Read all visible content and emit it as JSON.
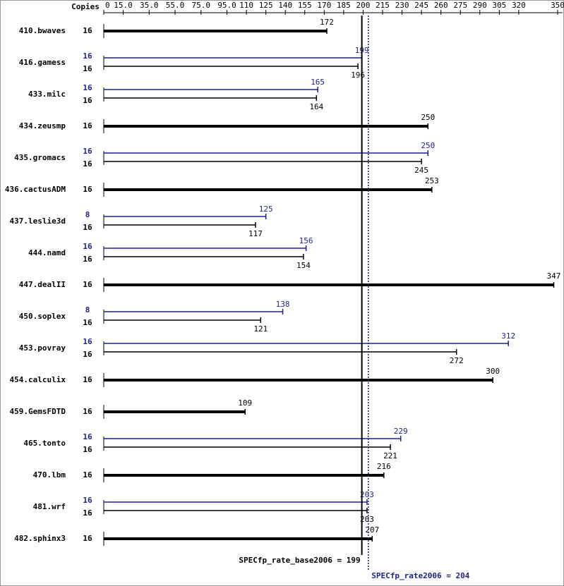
{
  "chart_data": {
    "type": "spec-rate",
    "copies_header": "Copies",
    "categories": [
      "410.bwaves",
      "416.gamess",
      "433.milc",
      "434.zeusmp",
      "435.gromacs",
      "436.cactusADM",
      "437.leslie3d",
      "444.namd",
      "447.dealII",
      "450.soplex",
      "453.povray",
      "454.calculix",
      "459.GemsFDTD",
      "465.tonto",
      "470.lbm",
      "481.wrf",
      "482.sphinx3"
    ],
    "base": {
      "color": "#000000",
      "copies": [
        16,
        16,
        16,
        16,
        16,
        16,
        16,
        16,
        16,
        16,
        16,
        16,
        16,
        16,
        16,
        16,
        16
      ],
      "values": [
        172,
        196,
        164,
        250,
        245,
        253,
        117,
        154,
        347,
        121,
        272,
        300,
        109,
        221,
        216,
        203,
        207
      ]
    },
    "peak": {
      "color": "#1f1f8f",
      "copies": [
        null,
        16,
        16,
        null,
        16,
        null,
        8,
        16,
        null,
        8,
        16,
        null,
        null,
        16,
        null,
        16,
        null
      ],
      "values": [
        null,
        199,
        165,
        null,
        250,
        null,
        125,
        156,
        null,
        138,
        312,
        null,
        null,
        229,
        null,
        203,
        null
      ]
    },
    "base_metric": {
      "text": "SPECfp_rate_base2006 = 199",
      "value": 199
    },
    "peak_metric": {
      "text": "SPECfp_rate2006 = 204",
      "value": 204
    },
    "xlim": [
      0,
      350
    ],
    "xticks": [
      0,
      {
        "value": 15,
        "label": "15.0"
      },
      {
        "value": 35,
        "label": "35.0"
      },
      {
        "value": 55,
        "label": "55.0"
      },
      {
        "value": 75,
        "label": "75.0"
      },
      {
        "value": 95,
        "label": "95.0"
      },
      110,
      125,
      140,
      155,
      170,
      185,
      200,
      215,
      230,
      245,
      260,
      275,
      290,
      305,
      320,
      350
    ]
  }
}
